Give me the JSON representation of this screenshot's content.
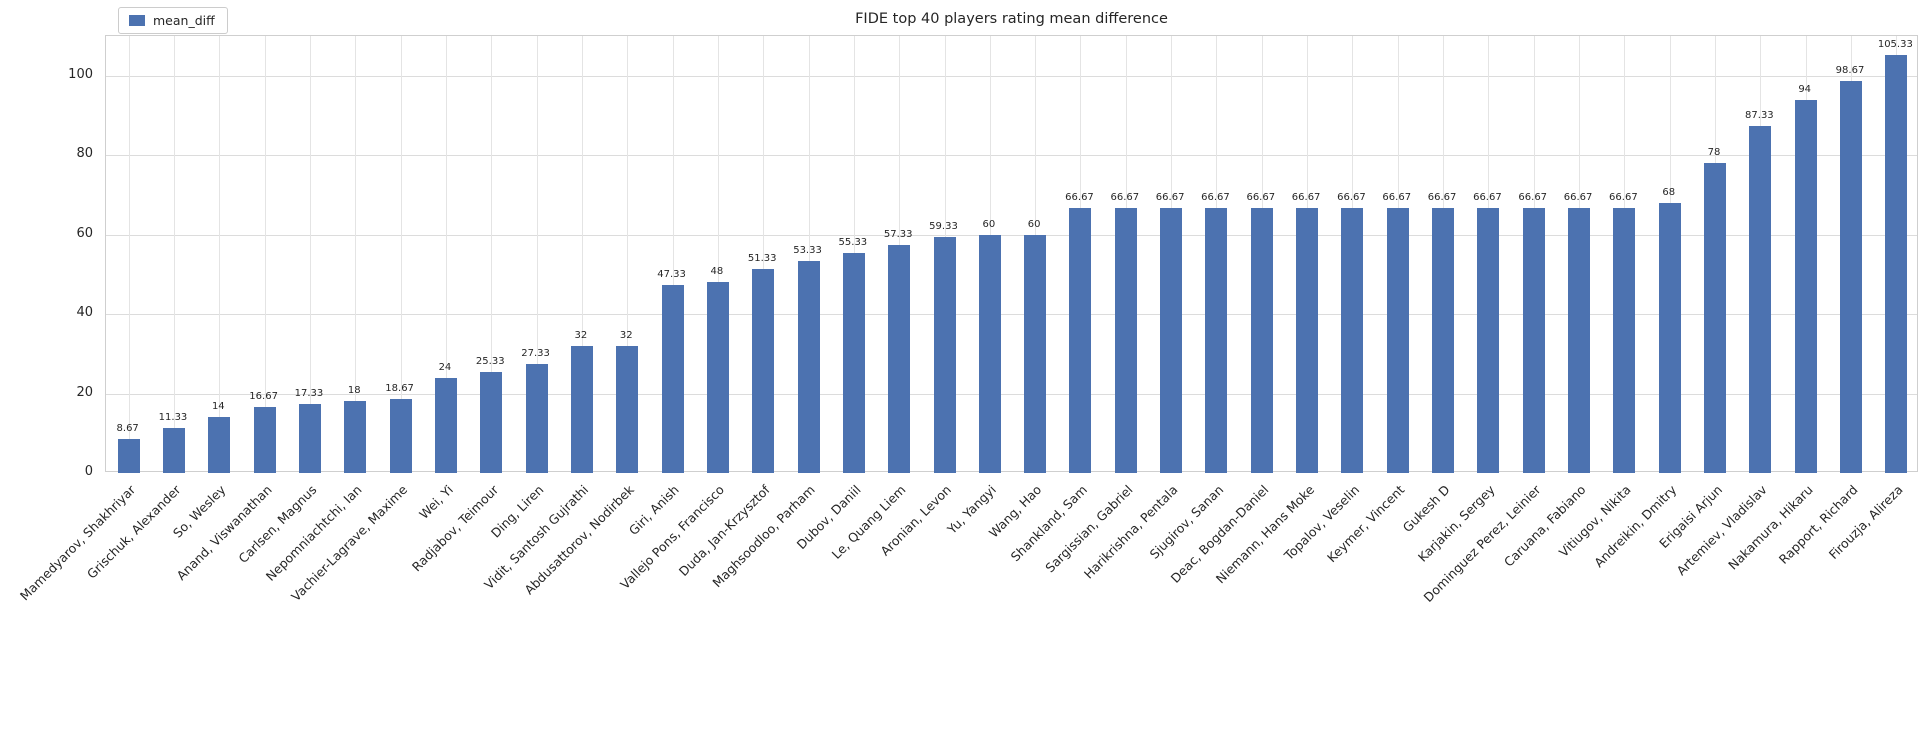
{
  "chart_data": {
    "type": "bar",
    "title": "FIDE top 40 players rating mean difference",
    "legend": {
      "label": "mean_diff",
      "position": "upper-left"
    },
    "xlabel": "",
    "ylabel": "",
    "ylim": [
      0,
      110
    ],
    "yticks": [
      0,
      20,
      40,
      60,
      80,
      100
    ],
    "grid": true,
    "bar_color": "#4C72B0",
    "categories": [
      "Mamedyarov, Shakhriyar",
      "Grischuk, Alexander",
      "So, Wesley",
      "Anand, Viswanathan",
      "Carlsen, Magnus",
      "Nepomniachtchi, Ian",
      "Vachier-Lagrave, Maxime",
      "Wei, Yi",
      "Radjabov, Teimour",
      "Ding, Liren",
      "Vidit, Santosh Gujrathi",
      "Abdusattorov, Nodirbek",
      "Giri, Anish",
      "Vallejo Pons, Francisco",
      "Duda, Jan-Krzysztof",
      "Maghsoodloo, Parham",
      "Dubov, Daniil",
      "Le, Quang Liem",
      "Aronian, Levon",
      "Yu, Yangyi",
      "Wang, Hao",
      "Shankland, Sam",
      "Sargissian, Gabriel",
      "Harikrishna, Pentala",
      "Sjugirov, Sanan",
      "Deac, Bogdan-Daniel",
      "Niemann, Hans Moke",
      "Topalov, Veselin",
      "Keymer, Vincent",
      "Gukesh D",
      "Karjakin, Sergey",
      "Dominguez Perez, Leinier",
      "Caruana, Fabiano",
      "Vitiugov, Nikita",
      "Andreikin, Dmitry",
      "Erigaisi Arjun",
      "Artemiev, Vladislav",
      "Nakamura, Hikaru",
      "Rapport, Richard",
      "Firouzja, Alireza"
    ],
    "values": [
      8.67,
      11.33,
      14,
      16.67,
      17.33,
      18,
      18.67,
      24,
      25.33,
      27.33,
      32,
      32,
      47.33,
      48,
      51.33,
      53.33,
      55.33,
      57.33,
      59.33,
      60,
      60,
      66.67,
      66.67,
      66.67,
      66.67,
      66.67,
      66.67,
      66.67,
      66.67,
      66.67,
      66.67,
      66.67,
      66.67,
      66.67,
      68,
      78,
      87.33,
      94,
      98.67,
      105.33
    ],
    "value_labels": [
      "8.67",
      "11.33",
      "14",
      "16.67",
      "17.33",
      "18",
      "18.67",
      "24",
      "25.33",
      "27.33",
      "32",
      "32",
      "47.33",
      "48",
      "51.33",
      "53.33",
      "55.33",
      "57.33",
      "59.33",
      "60",
      "60",
      "66.67",
      "66.67",
      "66.67",
      "66.67",
      "66.67",
      "66.67",
      "66.67",
      "66.67",
      "66.67",
      "66.67",
      "66.67",
      "66.67",
      "66.67",
      "68",
      "78",
      "87.33",
      "94",
      "98.67",
      "105.33"
    ]
  }
}
